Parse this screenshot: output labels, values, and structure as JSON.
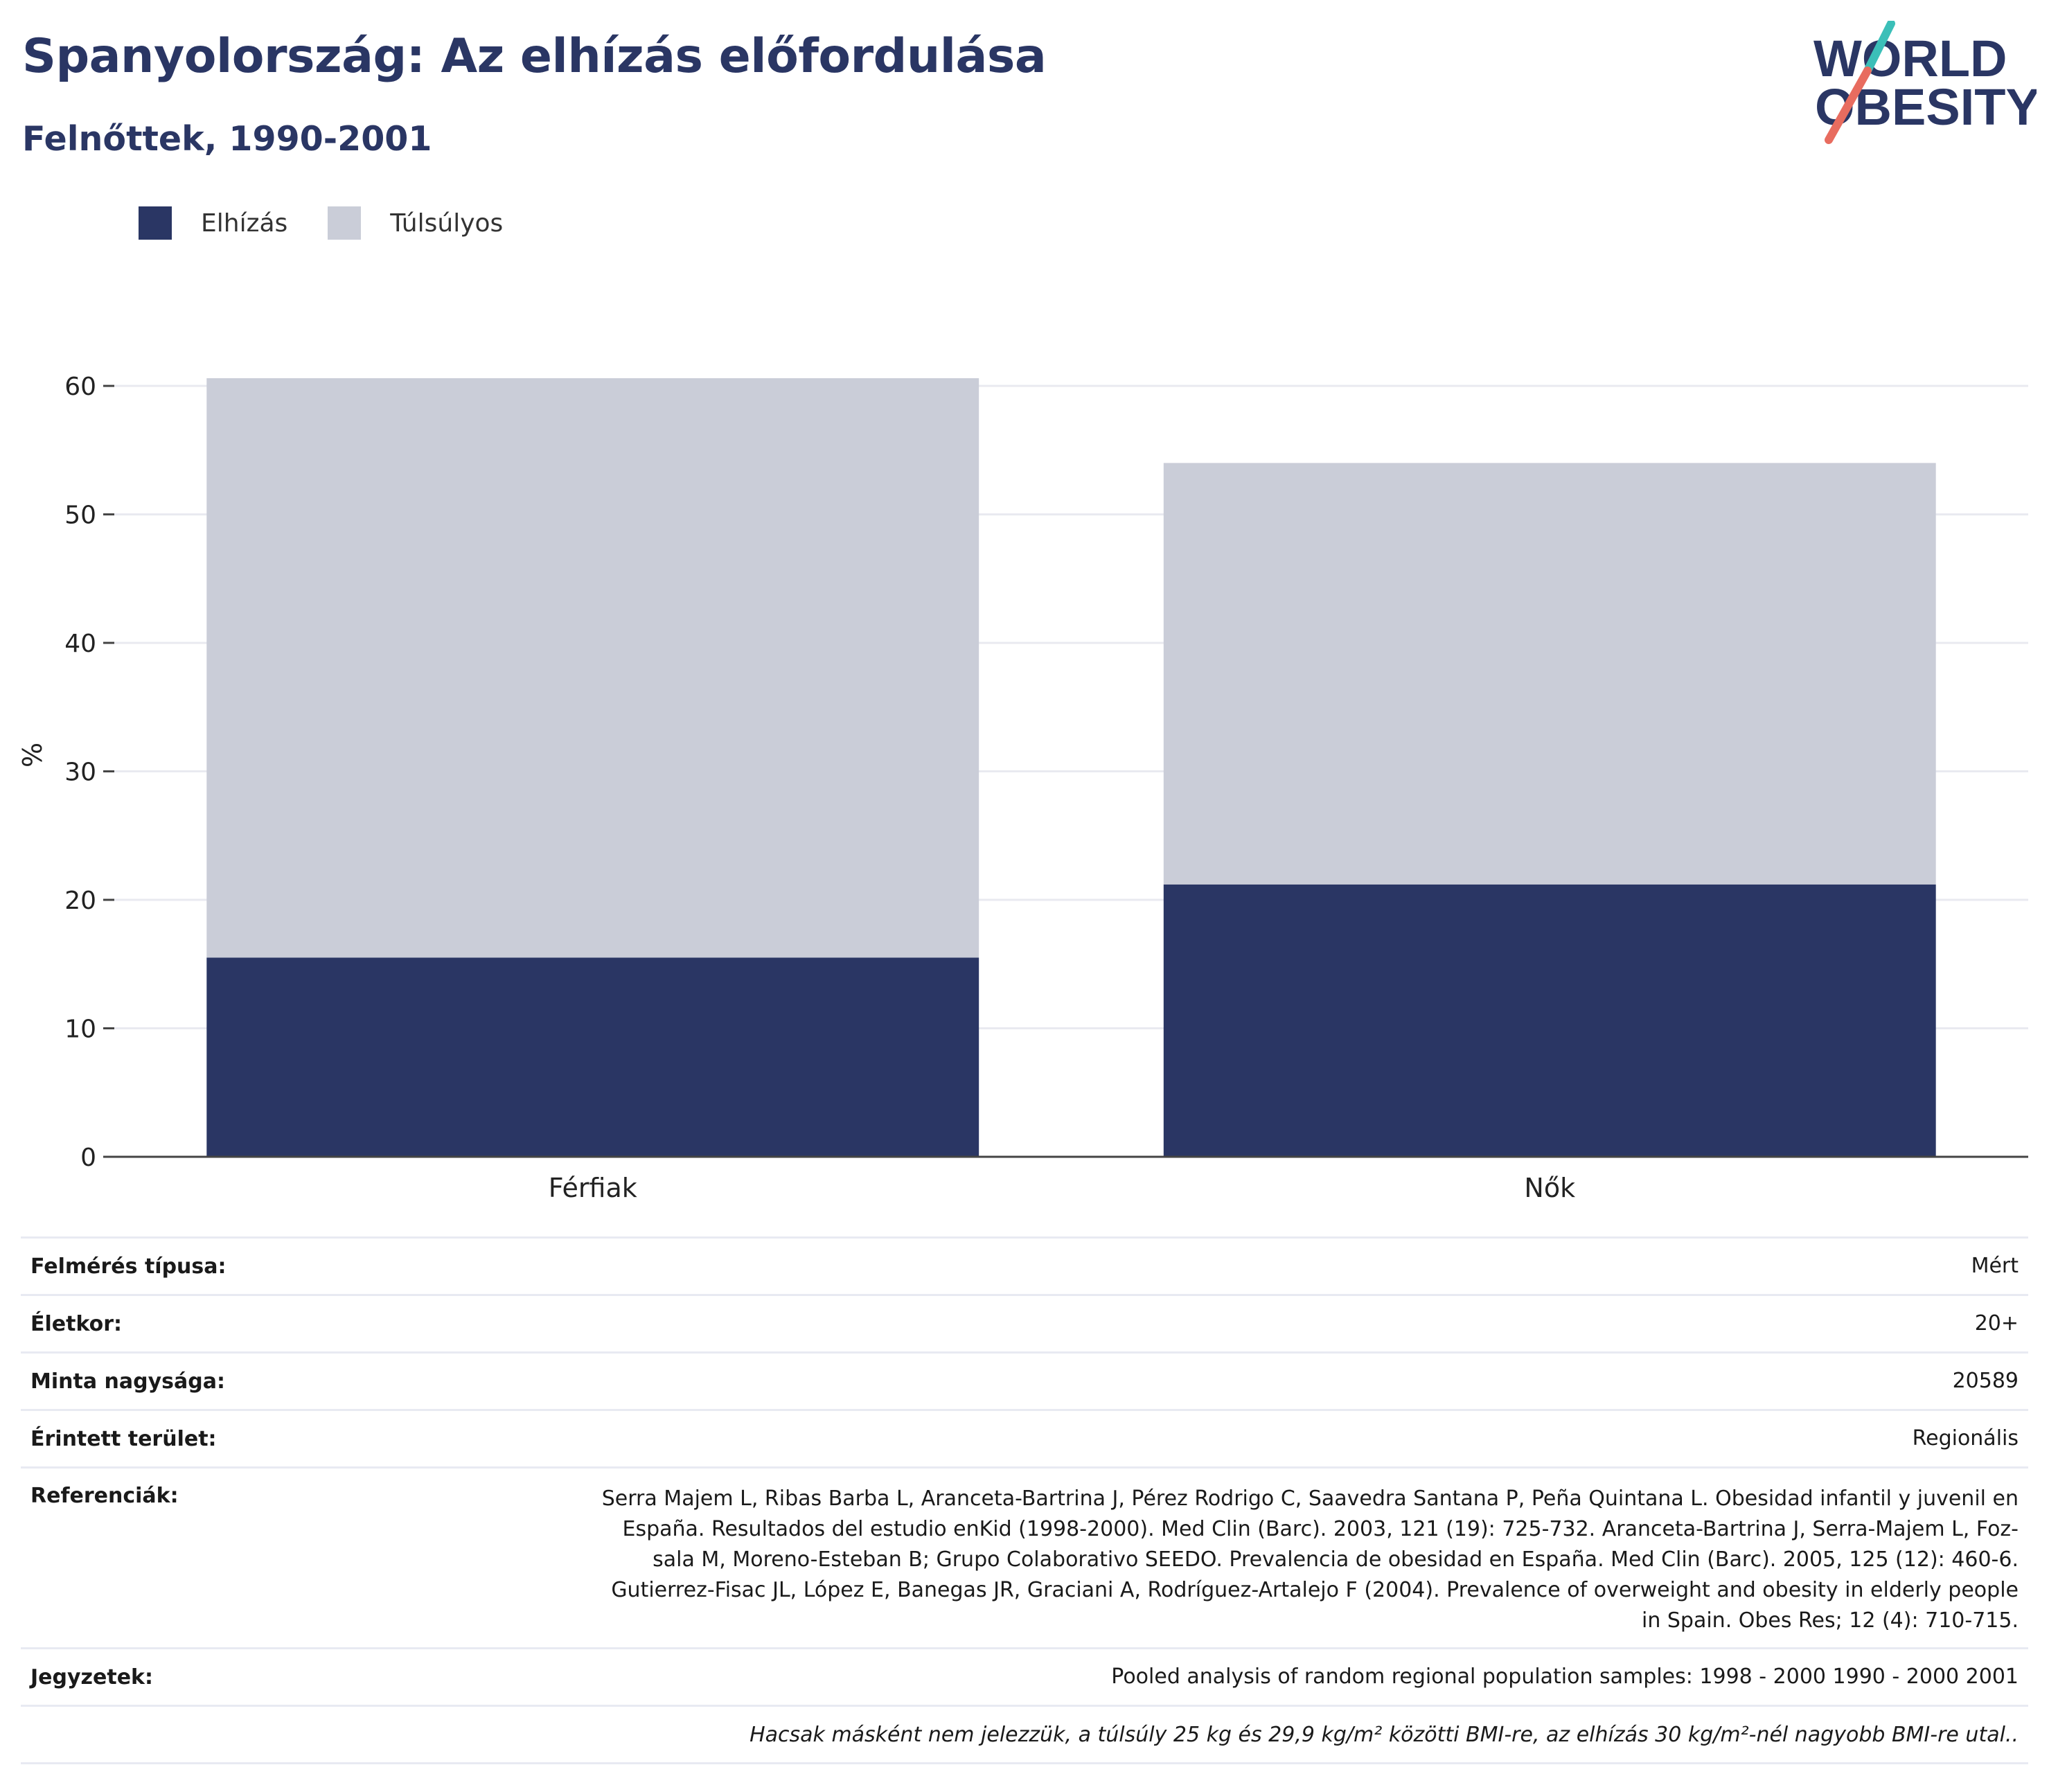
{
  "header": {
    "title": "Spanyolország: Az elhízás előfordulása",
    "subtitle": "Felnőttek, 1990-2001",
    "logo_line1": "WORLD",
    "logo_line2": "OBESITY"
  },
  "colors": {
    "obesity": "#2a3664",
    "overweight": "#cacdd8",
    "title": "#2a3664",
    "logo_teal": "#3bbfb8",
    "logo_coral": "#e86c5f"
  },
  "legend": [
    {
      "label": "Elhízás",
      "color": "#2a3664"
    },
    {
      "label": "Túlsúlyos",
      "color": "#cacdd8"
    }
  ],
  "chart_data": {
    "type": "bar",
    "stacked": true,
    "categories": [
      "Férfiak",
      "Nők"
    ],
    "series": [
      {
        "name": "Elhízás",
        "values": [
          15.5,
          21.2
        ],
        "color": "#2a3664"
      },
      {
        "name": "Túlsúlyos",
        "values": [
          45.1,
          32.8
        ],
        "color": "#cacdd8"
      }
    ],
    "ylabel": "%",
    "ylim": [
      0,
      62
    ],
    "yticks": [
      0,
      10,
      20,
      30,
      40,
      50,
      60
    ],
    "grid": true,
    "legend_position": "top-left"
  },
  "meta": {
    "survey_type_label": "Felmérés típusa:",
    "survey_type": "Mért",
    "age_label": "Életkor:",
    "age": "20+",
    "sample_label": "Minta nagysága:",
    "sample": "20589",
    "area_label": "Érintett terület:",
    "area": "Regionális",
    "refs_label": "Referenciák:",
    "refs": [
      "Serra Majem L, Ribas Barba L, Aranceta-Bartrina J, Pérez Rodrigo C, Saavedra Santana P, Peña Quintana L. Obesidad infantil y juvenil en",
      "España. Resultados del estudio enKid (1998-2000). Med Clin (Barc). 2003, 121 (19): 725-732. Aranceta-Bartrina J, Serra-Majem L, Foz-",
      "sala M, Moreno-Esteban B; Grupo Colaborativo SEEDO. Prevalencia de obesidad en España. Med Clin (Barc). 2005, 125 (12): 460-6.",
      "Gutierrez-Fisac JL, López E, Banegas JR, Graciani A, Rodríguez-Artalejo F (2004). Prevalence of overweight and obesity in elderly people",
      "in Spain. Obes Res; 12 (4): 710-715."
    ],
    "notes_label": "Jegyzetek:",
    "notes": "Pooled analysis of random regional population samples: 1998 - 2000 1990 - 2000 2001",
    "footnote": "Hacsak másként nem jelezzük, a túlsúly 25 kg és 29,9 kg/m² közötti BMI-re, az elhízás 30 kg/m²-nél nagyobb BMI-re utal.."
  }
}
